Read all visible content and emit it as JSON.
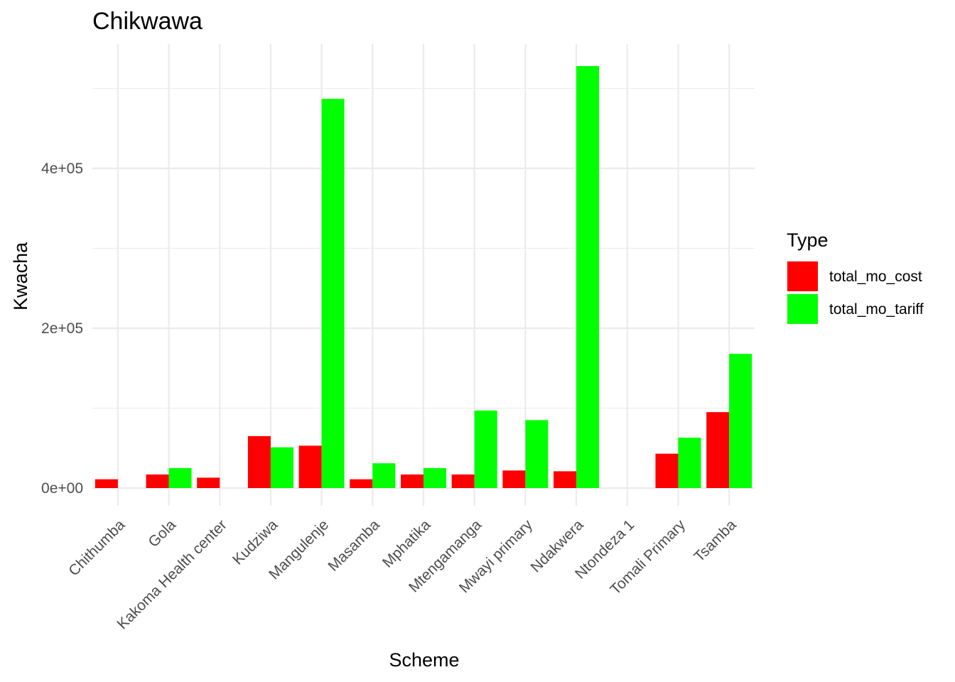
{
  "chart_data": {
    "type": "bar",
    "title": "Chikwawa",
    "xlabel": "Scheme",
    "ylabel": "Kwacha",
    "categories": [
      "Chithumba",
      "Gola",
      "Kakoma Health center",
      "Kudziwa",
      "Mangulenje",
      "Masamba",
      "Mphatika",
      "Mtengamanga",
      "Mwayi primary",
      "Ndakwera",
      "Ntondeza 1",
      "Tomali Primary",
      "Tsamba"
    ],
    "series": [
      {
        "name": "total_mo_cost",
        "color": "#ff0000",
        "values": [
          11000,
          17000,
          13000,
          65000,
          53000,
          11000,
          17000,
          17000,
          22000,
          21000,
          0,
          43000,
          95000
        ]
      },
      {
        "name": "total_mo_tariff",
        "color": "#00ff00",
        "values": [
          0,
          25000,
          0,
          51000,
          487000,
          31000,
          25000,
          97000,
          85000,
          528000,
          0,
          63000,
          168000
        ]
      }
    ],
    "yticks": [
      0,
      200000,
      400000
    ],
    "ytick_labels": [
      "0e+00",
      "2e+05",
      "4e+05"
    ],
    "ylim": [
      -24000,
      553000
    ],
    "grid": true,
    "legend": {
      "title": "Type",
      "position": "right"
    }
  }
}
